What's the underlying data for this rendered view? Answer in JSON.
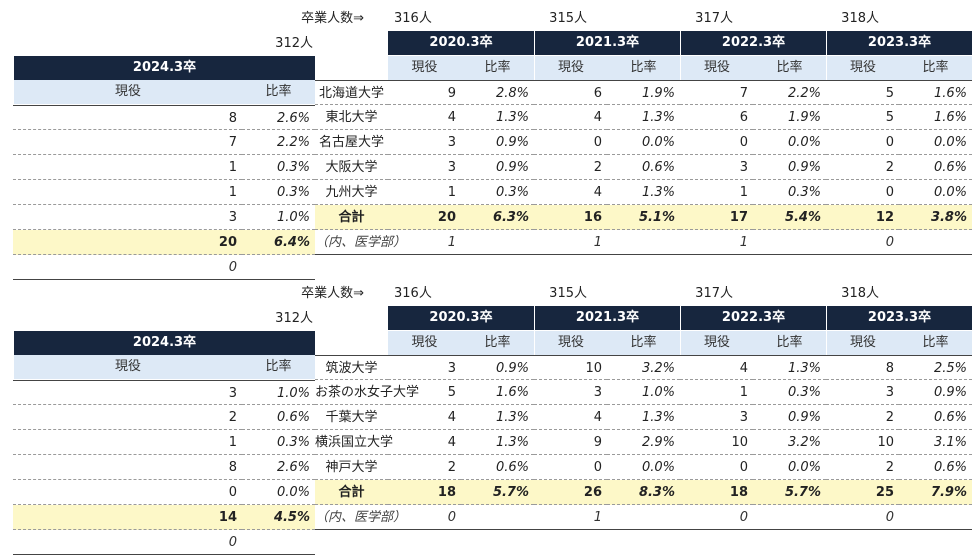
{
  "tables": [
    {
      "grad_label": "卒業人数",
      "grad_arrow": "⇒",
      "grad_counts": [
        "316人",
        "315人",
        "317人",
        "318人",
        "312人"
      ],
      "years": [
        "2020.3卒",
        "2021.3卒",
        "2022.3卒",
        "2023.3卒",
        "2024.3卒"
      ],
      "sub_headers": {
        "current": "現役",
        "ratio": "比率"
      },
      "rows": [
        {
          "name": "北海道大学",
          "values": [
            [
              "9",
              "2.8%"
            ],
            [
              "6",
              "1.9%"
            ],
            [
              "7",
              "2.2%"
            ],
            [
              "5",
              "1.6%"
            ],
            [
              "8",
              "2.6%"
            ]
          ]
        },
        {
          "name": "東北大学",
          "values": [
            [
              "4",
              "1.3%"
            ],
            [
              "4",
              "1.3%"
            ],
            [
              "6",
              "1.9%"
            ],
            [
              "5",
              "1.6%"
            ],
            [
              "7",
              "2.2%"
            ]
          ]
        },
        {
          "name": "名古屋大学",
          "values": [
            [
              "3",
              "0.9%"
            ],
            [
              "0",
              "0.0%"
            ],
            [
              "0",
              "0.0%"
            ],
            [
              "0",
              "0.0%"
            ],
            [
              "1",
              "0.3%"
            ]
          ]
        },
        {
          "name": "大阪大学",
          "values": [
            [
              "3",
              "0.9%"
            ],
            [
              "2",
              "0.6%"
            ],
            [
              "3",
              "0.9%"
            ],
            [
              "2",
              "0.6%"
            ],
            [
              "1",
              "0.3%"
            ]
          ]
        },
        {
          "name": "九州大学",
          "values": [
            [
              "1",
              "0.3%"
            ],
            [
              "4",
              "1.3%"
            ],
            [
              "1",
              "0.3%"
            ],
            [
              "0",
              "0.0%"
            ],
            [
              "3",
              "1.0%"
            ]
          ]
        }
      ],
      "total": {
        "name": "合計",
        "values": [
          [
            "20",
            "6.3%"
          ],
          [
            "16",
            "5.1%"
          ],
          [
            "17",
            "5.4%"
          ],
          [
            "12",
            "3.8%"
          ],
          [
            "20",
            "6.4%"
          ]
        ]
      },
      "medical": {
        "name": "（内、医学部）",
        "values": [
          "1",
          "1",
          "1",
          "0",
          "0"
        ]
      }
    },
    {
      "grad_label": "卒業人数",
      "grad_arrow": "⇒",
      "grad_counts": [
        "316人",
        "315人",
        "317人",
        "318人",
        "312人"
      ],
      "years": [
        "2020.3卒",
        "2021.3卒",
        "2022.3卒",
        "2023.3卒",
        "2024.3卒"
      ],
      "sub_headers": {
        "current": "現役",
        "ratio": "比率"
      },
      "rows": [
        {
          "name": "筑波大学",
          "values": [
            [
              "3",
              "0.9%"
            ],
            [
              "10",
              "3.2%"
            ],
            [
              "4",
              "1.3%"
            ],
            [
              "8",
              "2.5%"
            ],
            [
              "3",
              "1.0%"
            ]
          ]
        },
        {
          "name": "お茶の水女子大学",
          "values": [
            [
              "5",
              "1.6%"
            ],
            [
              "3",
              "1.0%"
            ],
            [
              "1",
              "0.3%"
            ],
            [
              "3",
              "0.9%"
            ],
            [
              "2",
              "0.6%"
            ]
          ]
        },
        {
          "name": "千葉大学",
          "values": [
            [
              "4",
              "1.3%"
            ],
            [
              "4",
              "1.3%"
            ],
            [
              "3",
              "0.9%"
            ],
            [
              "2",
              "0.6%"
            ],
            [
              "1",
              "0.3%"
            ]
          ]
        },
        {
          "name": "横浜国立大学",
          "values": [
            [
              "4",
              "1.3%"
            ],
            [
              "9",
              "2.9%"
            ],
            [
              "10",
              "3.2%"
            ],
            [
              "10",
              "3.1%"
            ],
            [
              "8",
              "2.6%"
            ]
          ]
        },
        {
          "name": "神戸大学",
          "values": [
            [
              "2",
              "0.6%"
            ],
            [
              "0",
              "0.0%"
            ],
            [
              "0",
              "0.0%"
            ],
            [
              "2",
              "0.6%"
            ],
            [
              "0",
              "0.0%"
            ]
          ]
        }
      ],
      "total": {
        "name": "合計",
        "values": [
          [
            "18",
            "5.7%"
          ],
          [
            "26",
            "8.3%"
          ],
          [
            "18",
            "5.7%"
          ],
          [
            "25",
            "7.9%"
          ],
          [
            "14",
            "4.5%"
          ]
        ]
      },
      "medical": {
        "name": "（内、医学部）",
        "values": [
          "0",
          "1",
          "0",
          "0",
          "0"
        ]
      }
    }
  ]
}
